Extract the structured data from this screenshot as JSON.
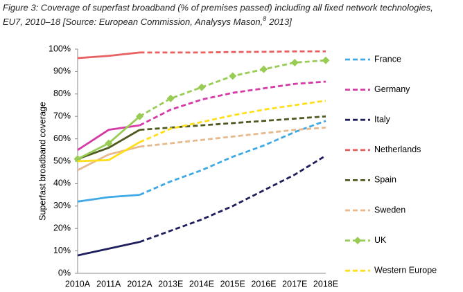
{
  "chart_data": {
    "type": "line",
    "title": [
      "Figure 3: Coverage of superfast broadband (% of premises passed) including all fixed network technologies,",
      "EU7, 2010–18 [Source: European Commission, Analysys Mason,"
    ],
    "title_note": "8",
    "title_tail": "2013]",
    "y_label": "Superfast broadband coverage",
    "categories": [
      "2010A",
      "2011A",
      "2012A",
      "2013E",
      "2014E",
      "2015E",
      "2016E",
      "2017E",
      "2018E"
    ],
    "projection_start": "2012A",
    "ylim": [
      0,
      100
    ],
    "yticks": [
      {
        "value": 0,
        "label": "0%"
      },
      {
        "value": 10,
        "label": "10%"
      },
      {
        "value": 20,
        "label": "20%"
      },
      {
        "value": 30,
        "label": "30%"
      },
      {
        "value": 40,
        "label": "40%"
      },
      {
        "value": 50,
        "label": "50%"
      },
      {
        "value": 60,
        "label": "60%"
      },
      {
        "value": 70,
        "label": "70%"
      },
      {
        "value": 80,
        "label": "80%"
      },
      {
        "value": 90,
        "label": "90%"
      },
      {
        "value": 100,
        "label": "100%"
      }
    ],
    "legend": "right",
    "series": [
      {
        "name": "France",
        "color": "#3fa9e6",
        "values": [
          32,
          34,
          35,
          41,
          46,
          52,
          57,
          63,
          68
        ]
      },
      {
        "name": "Germany",
        "color": "#d63aa6",
        "values": [
          55,
          64,
          66,
          73,
          77.5,
          80.5,
          82.5,
          84.5,
          85.5
        ]
      },
      {
        "name": "Italy",
        "color": "#1f1f5e",
        "values": [
          8,
          11,
          14,
          19,
          24,
          30,
          37,
          44,
          52.5
        ]
      },
      {
        "name": "Netherlands",
        "color": "#e8605f",
        "values": [
          96,
          97,
          98.5,
          98.5,
          98.5,
          98.7,
          98.8,
          99,
          99
        ]
      },
      {
        "name": "Spain",
        "color": "#4e5a20",
        "values": [
          51,
          56,
          64,
          65,
          66,
          67,
          68,
          69,
          70
        ]
      },
      {
        "name": "Sweden",
        "color": "#e6b98e",
        "values": [
          46,
          53,
          56.5,
          58,
          59.5,
          61,
          62.5,
          64,
          65
        ]
      },
      {
        "name": "UK",
        "color": "#99cc55",
        "marker": "diamond",
        "values": [
          51,
          58,
          70,
          78,
          83,
          88,
          91,
          94,
          95
        ]
      },
      {
        "name": "Western Europe",
        "color": "#ffde1a",
        "values": [
          50,
          50.5,
          58.5,
          64.5,
          67.5,
          70.5,
          73,
          75,
          77
        ]
      }
    ]
  }
}
